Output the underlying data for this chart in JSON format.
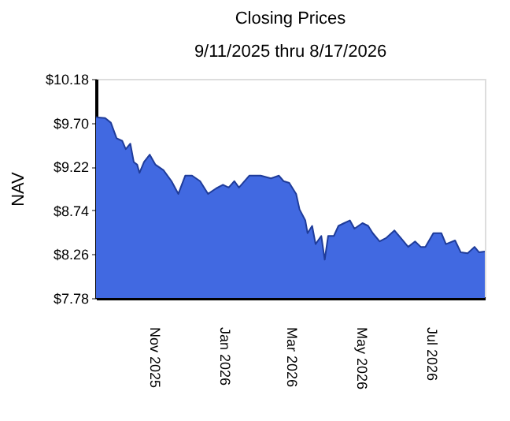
{
  "chart_data": {
    "type": "area",
    "title": "Closing Prices",
    "subtitle": "9/11/2025 thru 8/17/2026",
    "ylabel": "NAV",
    "x": [
      "2025-09-11",
      "2025-09-19",
      "2025-09-24",
      "2025-09-29",
      "2025-10-04",
      "2025-10-07",
      "2025-10-11",
      "2025-10-14",
      "2025-10-17",
      "2025-10-19",
      "2025-10-23",
      "2025-10-28",
      "2025-11-02",
      "2025-11-09",
      "2025-11-16",
      "2025-11-22",
      "2025-11-28",
      "2025-12-04",
      "2025-12-11",
      "2025-12-18",
      "2025-12-25",
      "2025-12-31",
      "2026-01-05",
      "2026-01-10",
      "2026-01-14",
      "2026-01-23",
      "2026-02-02",
      "2026-02-11",
      "2026-02-18",
      "2026-02-22",
      "2026-02-27",
      "2026-03-05",
      "2026-03-08",
      "2026-03-13",
      "2026-03-15",
      "2026-03-19",
      "2026-03-22",
      "2026-03-27",
      "2026-03-30",
      "2026-04-02",
      "2026-04-07",
      "2026-04-11",
      "2026-04-16",
      "2026-04-21",
      "2026-04-25",
      "2026-05-02",
      "2026-05-07",
      "2026-05-11",
      "2026-05-17",
      "2026-05-23",
      "2026-05-30",
      "2026-06-05",
      "2026-06-11",
      "2026-06-17",
      "2026-06-22",
      "2026-06-26",
      "2026-07-03",
      "2026-07-10",
      "2026-07-14",
      "2026-07-22",
      "2026-07-27",
      "2026-08-02",
      "2026-08-08",
      "2026-08-12",
      "2026-08-17"
    ],
    "series": [
      {
        "color": "#4169e1",
        "values": [
          9.76,
          9.75,
          9.7,
          9.53,
          9.5,
          9.41,
          9.47,
          9.27,
          9.24,
          9.15,
          9.27,
          9.35,
          9.24,
          9.18,
          9.06,
          8.92,
          9.12,
          9.12,
          9.06,
          8.92,
          8.98,
          9.02,
          8.99,
          9.06,
          8.99,
          9.12,
          9.12,
          9.09,
          9.12,
          9.06,
          9.04,
          8.92,
          8.75,
          8.63,
          8.49,
          8.57,
          8.37,
          8.46,
          8.2,
          8.46,
          8.46,
          8.57,
          8.6,
          8.63,
          8.54,
          8.6,
          8.57,
          8.49,
          8.4,
          8.44,
          8.52,
          8.43,
          8.34,
          8.4,
          8.34,
          8.34,
          8.49,
          8.49,
          8.37,
          8.41,
          8.28,
          8.27,
          8.34,
          8.28,
          8.29
        ]
      }
    ],
    "xlim": [
      "2025-09-11",
      "2026-08-17"
    ],
    "xticks": [
      {
        "value": "2025-11-01",
        "label": "Nov 2025"
      },
      {
        "value": "2026-01-01",
        "label": "Jan 2026"
      },
      {
        "value": "2026-03-01",
        "label": "Mar 2026"
      },
      {
        "value": "2026-05-01",
        "label": "May 2026"
      },
      {
        "value": "2026-07-01",
        "label": "Jul 2026"
      }
    ],
    "ylim": [
      7.78,
      10.18
    ],
    "yticks": [
      {
        "value": 7.78,
        "label": "$7.78"
      },
      {
        "value": 8.26,
        "label": "$8.26"
      },
      {
        "value": 8.74,
        "label": "$8.74"
      },
      {
        "value": 9.22,
        "label": "$9.22"
      },
      {
        "value": 9.7,
        "label": "$9.70"
      },
      {
        "value": 10.18,
        "label": "$10.18"
      }
    ],
    "grid": false
  }
}
